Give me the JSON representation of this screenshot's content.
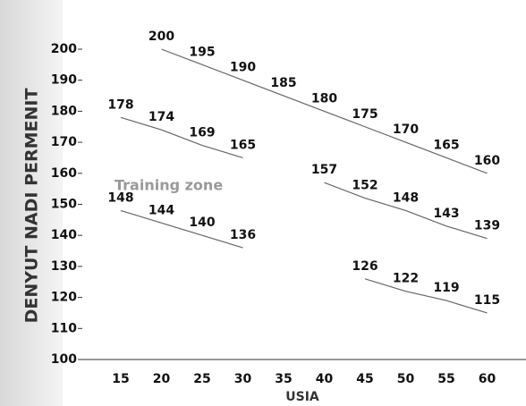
{
  "chart_data": {
    "type": "line",
    "y_label": "DENYUT NADI PERMENIT",
    "x_label": "USIA",
    "annotation": "Training zone",
    "categories": [
      15,
      20,
      25,
      30,
      35,
      40,
      45,
      50,
      55,
      60
    ],
    "series": [
      {
        "color": "#666",
        "values": [
          null,
          200,
          195,
          190,
          185,
          180,
          175,
          170,
          165,
          160
        ]
      },
      {
        "color": "#666",
        "values": [
          178,
          174,
          169,
          165,
          null,
          157,
          152,
          148,
          143,
          139
        ]
      },
      {
        "color": "#666",
        "values": [
          148,
          144,
          140,
          136,
          null,
          null,
          126,
          122,
          119,
          115
        ]
      }
    ],
    "ylim": [
      100,
      200
    ],
    "yticks": [
      100,
      110,
      120,
      130,
      140,
      150,
      160,
      170,
      180,
      190,
      200
    ]
  }
}
